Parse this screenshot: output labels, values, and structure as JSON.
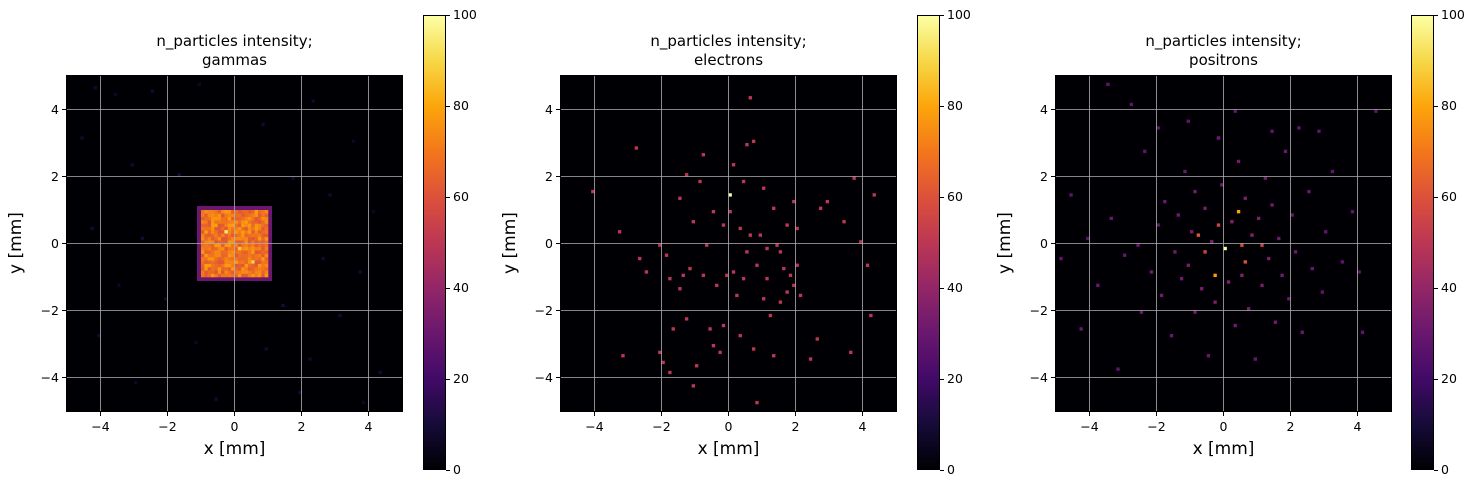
{
  "chart_data": [
    {
      "type": "heatmap",
      "title": "n_particles intensity;",
      "subtitle": "gammas",
      "xlabel": "x [mm]",
      "ylabel": "y [mm]",
      "xlim": [
        -5,
        5
      ],
      "ylim": [
        -5,
        5
      ],
      "xticks": [
        -4,
        -2,
        0,
        2,
        4
      ],
      "yticks": [
        -4,
        -2,
        0,
        2,
        4
      ],
      "grid": true,
      "colormap": "inferno",
      "colorbar": {
        "range": [
          0,
          100
        ],
        "ticks": [
          0,
          20,
          40,
          60,
          80,
          100
        ]
      },
      "pattern": "dense square of high counts (~60-80) over x,y in [-1, 1] mm, sparse low-count (~10) background elsewhere",
      "core": {
        "x": [
          -1,
          1
        ],
        "y": [
          -1,
          1
        ],
        "value": 70
      },
      "points": [
        {
          "x": -4.2,
          "y": 4.7,
          "v": 8
        },
        {
          "x": -3.6,
          "y": 4.5,
          "v": 6
        },
        {
          "x": -2.5,
          "y": 4.6,
          "v": 8
        },
        {
          "x": -1.1,
          "y": 4.8,
          "v": 6
        },
        {
          "x": 0.8,
          "y": 3.6,
          "v": 8
        },
        {
          "x": 2.3,
          "y": 4.3,
          "v": 8
        },
        {
          "x": 3.5,
          "y": 3.1,
          "v": 6
        },
        {
          "x": -4.6,
          "y": 3.2,
          "v": 8
        },
        {
          "x": -3.1,
          "y": 2.4,
          "v": 8
        },
        {
          "x": -1.7,
          "y": 2.1,
          "v": 10
        },
        {
          "x": 1.7,
          "y": 2.0,
          "v": 8
        },
        {
          "x": 2.8,
          "y": 1.5,
          "v": 8
        },
        {
          "x": 4.1,
          "y": 1.0,
          "v": 6
        },
        {
          "x": -4.3,
          "y": 0.5,
          "v": 8
        },
        {
          "x": -2.8,
          "y": 0.2,
          "v": 8
        },
        {
          "x": 2.6,
          "y": -0.4,
          "v": 8
        },
        {
          "x": 3.7,
          "y": -0.8,
          "v": 8
        },
        {
          "x": -3.5,
          "y": -1.2,
          "v": 6
        },
        {
          "x": -2.1,
          "y": -1.6,
          "v": 8
        },
        {
          "x": 1.4,
          "y": -1.8,
          "v": 10
        },
        {
          "x": 3.1,
          "y": -2.1,
          "v": 8
        },
        {
          "x": -4.1,
          "y": -2.7,
          "v": 8
        },
        {
          "x": -1.2,
          "y": -2.9,
          "v": 6
        },
        {
          "x": 0.9,
          "y": -3.1,
          "v": 8
        },
        {
          "x": 2.2,
          "y": -3.4,
          "v": 8
        },
        {
          "x": 4.3,
          "y": -3.8,
          "v": 8
        },
        {
          "x": -3.0,
          "y": -4.1,
          "v": 6
        },
        {
          "x": -0.6,
          "y": -4.6,
          "v": 8
        },
        {
          "x": 1.9,
          "y": -4.4,
          "v": 8
        },
        {
          "x": 3.8,
          "y": -4.7,
          "v": 6
        },
        {
          "x": 0.1,
          "y": -0.1,
          "v": 88
        },
        {
          "x": -0.3,
          "y": 0.4,
          "v": 95
        },
        {
          "x": 0.5,
          "y": -0.5,
          "v": 90
        }
      ]
    },
    {
      "type": "heatmap",
      "title": "n_particles intensity;",
      "subtitle": "electrons",
      "xlabel": "x [mm]",
      "ylabel": "y [mm]",
      "xlim": [
        -5,
        5
      ],
      "ylim": [
        -5,
        5
      ],
      "xticks": [
        -4,
        -2,
        0,
        2,
        4
      ],
      "yticks": [
        -4,
        -2,
        0,
        2,
        4
      ],
      "grid": true,
      "colormap": "inferno",
      "colorbar": {
        "range": [
          0,
          100
        ],
        "ticks": [
          0,
          20,
          40,
          60,
          80,
          100
        ]
      },
      "pattern": "sparse isolated pixels of ~50 counts scattered over |x|,|y| < 4.5 mm",
      "points": [
        {
          "x": -4.1,
          "y": 1.6,
          "v": 50
        },
        {
          "x": -3.3,
          "y": 0.4,
          "v": 50
        },
        {
          "x": -3.2,
          "y": -3.3,
          "v": 50
        },
        {
          "x": -2.8,
          "y": 2.9,
          "v": 50
        },
        {
          "x": -2.7,
          "y": -0.4,
          "v": 50
        },
        {
          "x": -2.5,
          "y": -0.8,
          "v": 50
        },
        {
          "x": -2.1,
          "y": -3.2,
          "v": 50
        },
        {
          "x": -2.1,
          "y": 0.0,
          "v": 50
        },
        {
          "x": -2.0,
          "y": -3.5,
          "v": 50
        },
        {
          "x": -1.9,
          "y": -0.3,
          "v": 50
        },
        {
          "x": -1.8,
          "y": -1.0,
          "v": 50
        },
        {
          "x": -1.8,
          "y": -3.8,
          "v": 50
        },
        {
          "x": -1.7,
          "y": -2.5,
          "v": 50
        },
        {
          "x": -1.5,
          "y": 1.4,
          "v": 50
        },
        {
          "x": -1.5,
          "y": -1.3,
          "v": 50
        },
        {
          "x": -1.4,
          "y": -0.9,
          "v": 50
        },
        {
          "x": -1.3,
          "y": -2.2,
          "v": 50
        },
        {
          "x": -1.3,
          "y": 2.1,
          "v": 50
        },
        {
          "x": -1.2,
          "y": -0.7,
          "v": 50
        },
        {
          "x": -1.1,
          "y": 0.7,
          "v": 50
        },
        {
          "x": -1.1,
          "y": -4.2,
          "v": 50
        },
        {
          "x": -1.0,
          "y": -3.6,
          "v": 50
        },
        {
          "x": -0.9,
          "y": 1.9,
          "v": 50
        },
        {
          "x": -0.8,
          "y": 2.7,
          "v": 50
        },
        {
          "x": -0.8,
          "y": -0.9,
          "v": 50
        },
        {
          "x": -0.7,
          "y": 0.0,
          "v": 50
        },
        {
          "x": -0.6,
          "y": -2.5,
          "v": 50
        },
        {
          "x": -0.5,
          "y": 1.0,
          "v": 50
        },
        {
          "x": -0.5,
          "y": -3.0,
          "v": 50
        },
        {
          "x": -0.4,
          "y": -1.2,
          "v": 50
        },
        {
          "x": -0.3,
          "y": -3.2,
          "v": 50
        },
        {
          "x": -0.2,
          "y": 0.6,
          "v": 50
        },
        {
          "x": -0.2,
          "y": -2.4,
          "v": 50
        },
        {
          "x": -0.1,
          "y": -0.9,
          "v": 50
        },
        {
          "x": 0.0,
          "y": 1.0,
          "v": 50
        },
        {
          "x": 0.0,
          "y": 1.5,
          "v": 100
        },
        {
          "x": 0.1,
          "y": -0.8,
          "v": 50
        },
        {
          "x": 0.1,
          "y": 2.4,
          "v": 50
        },
        {
          "x": 0.2,
          "y": -1.5,
          "v": 50
        },
        {
          "x": 0.3,
          "y": 0.5,
          "v": 50
        },
        {
          "x": 0.3,
          "y": -2.7,
          "v": 50
        },
        {
          "x": 0.4,
          "y": -1.0,
          "v": 50
        },
        {
          "x": 0.4,
          "y": 1.9,
          "v": 50
        },
        {
          "x": 0.5,
          "y": 3.0,
          "v": 50
        },
        {
          "x": 0.5,
          "y": -0.2,
          "v": 50
        },
        {
          "x": 0.6,
          "y": 4.4,
          "v": 50
        },
        {
          "x": 0.6,
          "y": 0.3,
          "v": 50
        },
        {
          "x": 0.7,
          "y": -3.1,
          "v": 50
        },
        {
          "x": 0.7,
          "y": 3.1,
          "v": 50
        },
        {
          "x": 0.8,
          "y": -0.6,
          "v": 50
        },
        {
          "x": 0.8,
          "y": -4.7,
          "v": 50
        },
        {
          "x": 0.9,
          "y": 0.3,
          "v": 50
        },
        {
          "x": 1.0,
          "y": -1.6,
          "v": 50
        },
        {
          "x": 1.0,
          "y": 1.7,
          "v": 50
        },
        {
          "x": 1.1,
          "y": -1.0,
          "v": 50
        },
        {
          "x": 1.1,
          "y": -0.1,
          "v": 50
        },
        {
          "x": 1.2,
          "y": -2.1,
          "v": 50
        },
        {
          "x": 1.3,
          "y": 1.1,
          "v": 50
        },
        {
          "x": 1.3,
          "y": -3.3,
          "v": 50
        },
        {
          "x": 1.4,
          "y": 0.0,
          "v": 50
        },
        {
          "x": 1.5,
          "y": -0.2,
          "v": 50
        },
        {
          "x": 1.5,
          "y": -1.7,
          "v": 50
        },
        {
          "x": 1.6,
          "y": -0.7,
          "v": 50
        },
        {
          "x": 1.7,
          "y": -1.4,
          "v": 50
        },
        {
          "x": 1.7,
          "y": 0.6,
          "v": 50
        },
        {
          "x": 1.8,
          "y": -0.9,
          "v": 50
        },
        {
          "x": 1.9,
          "y": -1.2,
          "v": 50
        },
        {
          "x": 1.9,
          "y": 1.3,
          "v": 50
        },
        {
          "x": 2.0,
          "y": -0.6,
          "v": 50
        },
        {
          "x": 2.0,
          "y": 0.5,
          "v": 50
        },
        {
          "x": 2.1,
          "y": -1.5,
          "v": 50
        },
        {
          "x": 2.4,
          "y": -3.4,
          "v": 50
        },
        {
          "x": 2.6,
          "y": -2.8,
          "v": 50
        },
        {
          "x": 2.7,
          "y": 1.1,
          "v": 50
        },
        {
          "x": 2.9,
          "y": 1.3,
          "v": 50
        },
        {
          "x": 3.4,
          "y": 0.7,
          "v": 50
        },
        {
          "x": 3.6,
          "y": -3.2,
          "v": 50
        },
        {
          "x": 3.7,
          "y": 2.0,
          "v": 50
        },
        {
          "x": 3.9,
          "y": 0.1,
          "v": 50
        },
        {
          "x": 4.1,
          "y": -0.6,
          "v": 50
        },
        {
          "x": 4.2,
          "y": -2.1,
          "v": 50
        },
        {
          "x": 4.3,
          "y": 1.5,
          "v": 50
        }
      ]
    },
    {
      "type": "heatmap",
      "title": "n_particles intensity;",
      "subtitle": "positrons",
      "xlabel": "x [mm]",
      "ylabel": "y [mm]",
      "xlim": [
        -5,
        5
      ],
      "ylim": [
        -5,
        5
      ],
      "xticks": [
        -4,
        -2,
        0,
        2,
        4
      ],
      "yticks": [
        -4,
        -2,
        0,
        2,
        4
      ],
      "grid": true,
      "colormap": "inferno",
      "colorbar": {
        "range": [
          0,
          100
        ],
        "ticks": [
          0,
          20,
          40,
          60,
          80,
          100
        ]
      },
      "pattern": "scattered pixels of ~25-35 counts concentrated around origin (|x|,|y| < 3 mm), a few ~55-80 near center, peak ~100 at (0,0)",
      "points": [
        {
          "x": 0.0,
          "y": -0.1,
          "v": 100
        },
        {
          "x": -0.3,
          "y": -0.9,
          "v": 78
        },
        {
          "x": 0.4,
          "y": 1.0,
          "v": 80
        },
        {
          "x": -0.2,
          "y": 0.6,
          "v": 55
        },
        {
          "x": 0.6,
          "y": -0.5,
          "v": 60
        },
        {
          "x": -0.8,
          "y": 0.3,
          "v": 62
        },
        {
          "x": 1.1,
          "y": 0.0,
          "v": 55
        },
        {
          "x": 0.5,
          "y": 0.0,
          "v": 58
        },
        {
          "x": -0.6,
          "y": -0.2,
          "v": 55
        },
        {
          "x": -4.9,
          "y": -0.4,
          "v": 28
        },
        {
          "x": -4.6,
          "y": 1.5,
          "v": 28
        },
        {
          "x": -4.3,
          "y": -2.5,
          "v": 30
        },
        {
          "x": -4.1,
          "y": 0.2,
          "v": 28
        },
        {
          "x": -3.8,
          "y": -1.2,
          "v": 30
        },
        {
          "x": -3.5,
          "y": 4.8,
          "v": 28
        },
        {
          "x": -3.4,
          "y": 0.8,
          "v": 30
        },
        {
          "x": -3.2,
          "y": -3.7,
          "v": 28
        },
        {
          "x": -3.0,
          "y": -0.3,
          "v": 30
        },
        {
          "x": -2.8,
          "y": 4.2,
          "v": 28
        },
        {
          "x": -2.6,
          "y": 0.0,
          "v": 30
        },
        {
          "x": -2.5,
          "y": -2.0,
          "v": 30
        },
        {
          "x": -2.4,
          "y": 2.8,
          "v": 28
        },
        {
          "x": -2.2,
          "y": -0.8,
          "v": 32
        },
        {
          "x": -2.0,
          "y": 0.6,
          "v": 30
        },
        {
          "x": -1.9,
          "y": -1.5,
          "v": 32
        },
        {
          "x": -1.8,
          "y": 1.3,
          "v": 30
        },
        {
          "x": -1.6,
          "y": -2.7,
          "v": 30
        },
        {
          "x": -1.5,
          "y": -0.2,
          "v": 32
        },
        {
          "x": -1.4,
          "y": 0.9,
          "v": 32
        },
        {
          "x": -1.3,
          "y": -1.0,
          "v": 32
        },
        {
          "x": -1.2,
          "y": 2.2,
          "v": 30
        },
        {
          "x": -1.1,
          "y": -0.6,
          "v": 34
        },
        {
          "x": -1.0,
          "y": 0.4,
          "v": 34
        },
        {
          "x": -0.9,
          "y": -2.0,
          "v": 32
        },
        {
          "x": -0.9,
          "y": 1.6,
          "v": 32
        },
        {
          "x": -0.7,
          "y": -1.3,
          "v": 34
        },
        {
          "x": -0.6,
          "y": 1.1,
          "v": 34
        },
        {
          "x": -0.5,
          "y": -3.3,
          "v": 30
        },
        {
          "x": -0.4,
          "y": 0.1,
          "v": 36
        },
        {
          "x": -0.3,
          "y": -1.7,
          "v": 34
        },
        {
          "x": -0.2,
          "y": 3.2,
          "v": 30
        },
        {
          "x": -0.1,
          "y": 1.8,
          "v": 32
        },
        {
          "x": 0.1,
          "y": -1.1,
          "v": 36
        },
        {
          "x": 0.2,
          "y": 0.7,
          "v": 36
        },
        {
          "x": 0.3,
          "y": -2.4,
          "v": 32
        },
        {
          "x": 0.4,
          "y": 2.5,
          "v": 32
        },
        {
          "x": 0.5,
          "y": -0.9,
          "v": 36
        },
        {
          "x": 0.6,
          "y": 1.4,
          "v": 34
        },
        {
          "x": 0.7,
          "y": -1.9,
          "v": 34
        },
        {
          "x": 0.8,
          "y": 0.3,
          "v": 36
        },
        {
          "x": 0.9,
          "y": -3.4,
          "v": 30
        },
        {
          "x": 1.0,
          "y": 0.8,
          "v": 34
        },
        {
          "x": 1.1,
          "y": -1.2,
          "v": 34
        },
        {
          "x": 1.2,
          "y": 2.0,
          "v": 32
        },
        {
          "x": 1.3,
          "y": -0.4,
          "v": 34
        },
        {
          "x": 1.4,
          "y": 1.2,
          "v": 32
        },
        {
          "x": 1.5,
          "y": -2.3,
          "v": 32
        },
        {
          "x": 1.6,
          "y": 0.2,
          "v": 32
        },
        {
          "x": 1.7,
          "y": -0.9,
          "v": 32
        },
        {
          "x": 1.8,
          "y": 2.8,
          "v": 30
        },
        {
          "x": 1.9,
          "y": -1.6,
          "v": 30
        },
        {
          "x": 2.0,
          "y": 0.9,
          "v": 30
        },
        {
          "x": 2.1,
          "y": -0.2,
          "v": 30
        },
        {
          "x": 2.2,
          "y": 3.5,
          "v": 28
        },
        {
          "x": 2.3,
          "y": -2.6,
          "v": 30
        },
        {
          "x": 2.5,
          "y": 1.6,
          "v": 30
        },
        {
          "x": 2.6,
          "y": -0.7,
          "v": 30
        },
        {
          "x": 2.8,
          "y": 3.4,
          "v": 28
        },
        {
          "x": 2.9,
          "y": -1.4,
          "v": 28
        },
        {
          "x": 3.0,
          "y": 0.4,
          "v": 28
        },
        {
          "x": 3.2,
          "y": 2.2,
          "v": 28
        },
        {
          "x": 3.5,
          "y": -0.5,
          "v": 28
        },
        {
          "x": 3.8,
          "y": 1.0,
          "v": 28
        },
        {
          "x": 4.0,
          "y": -0.8,
          "v": 28
        },
        {
          "x": 4.1,
          "y": -2.6,
          "v": 28
        },
        {
          "x": 4.5,
          "y": 4.0,
          "v": 28
        },
        {
          "x": -1.1,
          "y": 3.7,
          "v": 28
        },
        {
          "x": 1.4,
          "y": 3.4,
          "v": 28
        },
        {
          "x": -0.2,
          "y": 3.2,
          "v": 30
        },
        {
          "x": 0.3,
          "y": 4.0,
          "v": 28
        },
        {
          "x": -2.0,
          "y": 3.5,
          "v": 28
        }
      ]
    }
  ]
}
